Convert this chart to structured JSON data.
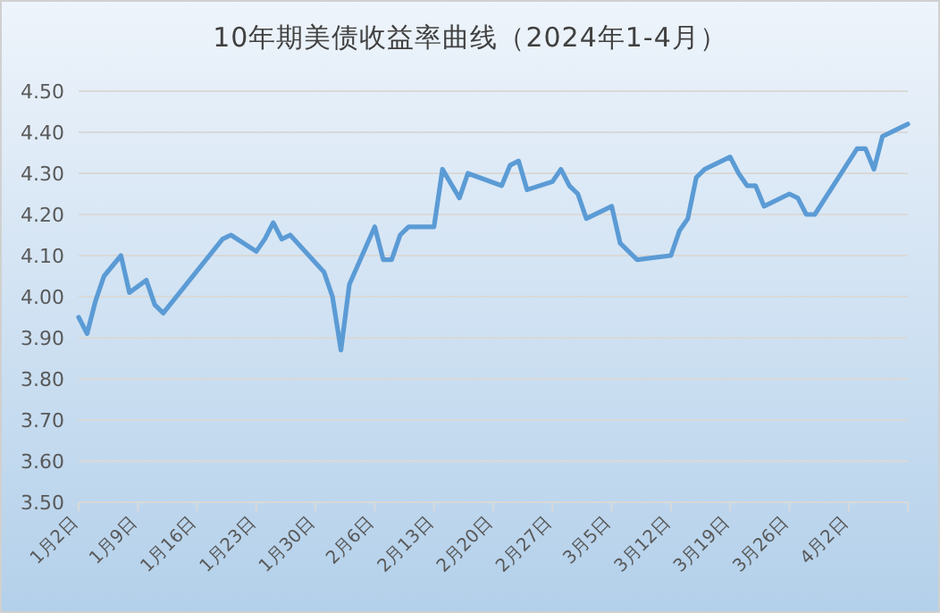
{
  "chart_data": {
    "type": "line",
    "title": "10年期美债收益率曲线（2024年1-4月）",
    "x": [
      "2024-01-02",
      "2024-01-03",
      "2024-01-04",
      "2024-01-05",
      "2024-01-07",
      "2024-01-08",
      "2024-01-10",
      "2024-01-11",
      "2024-01-12",
      "2024-01-19",
      "2024-01-20",
      "2024-01-23",
      "2024-01-24",
      "2024-01-25",
      "2024-01-26",
      "2024-01-27",
      "2024-01-31",
      "2024-02-01",
      "2024-02-02",
      "2024-02-03",
      "2024-02-06",
      "2024-02-07",
      "2024-02-08",
      "2024-02-09",
      "2024-02-10",
      "2024-02-13",
      "2024-02-14",
      "2024-02-16",
      "2024-02-17",
      "2024-02-21",
      "2024-02-22",
      "2024-02-23",
      "2024-02-24",
      "2024-02-27",
      "2024-02-28",
      "2024-02-29",
      "2024-03-01",
      "2024-03-02",
      "2024-03-05",
      "2024-03-06",
      "2024-03-08",
      "2024-03-12",
      "2024-03-13",
      "2024-03-14",
      "2024-03-15",
      "2024-03-16",
      "2024-03-19",
      "2024-03-20",
      "2024-03-21",
      "2024-03-22",
      "2024-03-23",
      "2024-03-26",
      "2024-03-27",
      "2024-03-28",
      "2024-03-29",
      "2024-04-03",
      "2024-04-04",
      "2024-04-05",
      "2024-04-06",
      "2024-04-09"
    ],
    "series": [
      {
        "color": "#5b9bd5",
        "values": [
          3.95,
          3.91,
          3.99,
          4.05,
          4.1,
          4.01,
          4.04,
          3.98,
          3.96,
          4.14,
          4.15,
          4.11,
          4.14,
          4.18,
          4.14,
          4.15,
          4.06,
          4.0,
          3.87,
          4.03,
          4.17,
          4.09,
          4.09,
          4.15,
          4.17,
          4.17,
          4.31,
          4.24,
          4.3,
          4.27,
          4.32,
          4.33,
          4.26,
          4.28,
          4.31,
          4.27,
          4.25,
          4.19,
          4.22,
          4.13,
          4.09,
          4.1,
          4.16,
          4.19,
          4.29,
          4.31,
          4.34,
          4.3,
          4.27,
          4.27,
          4.22,
          4.25,
          4.24,
          4.2,
          4.2,
          4.36,
          4.36,
          4.31,
          4.39,
          4.42
        ]
      }
    ],
    "xlim": [
      "2024-01-02",
      "2024-04-09"
    ],
    "xticks": [
      {
        "value": "2024-01-02",
        "label": "1月2日"
      },
      {
        "value": "2024-01-09",
        "label": "1月9日"
      },
      {
        "value": "2024-01-16",
        "label": "1月16日"
      },
      {
        "value": "2024-01-23",
        "label": "1月23日"
      },
      {
        "value": "2024-01-30",
        "label": "1月30日"
      },
      {
        "value": "2024-02-06",
        "label": "2月6日"
      },
      {
        "value": "2024-02-13",
        "label": "2月13日"
      },
      {
        "value": "2024-02-20",
        "label": "2月20日"
      },
      {
        "value": "2024-02-27",
        "label": "2月27日"
      },
      {
        "value": "2024-03-05",
        "label": "3月5日"
      },
      {
        "value": "2024-03-12",
        "label": "3月12日"
      },
      {
        "value": "2024-03-19",
        "label": "3月19日"
      },
      {
        "value": "2024-03-26",
        "label": "3月26日"
      },
      {
        "value": "2024-04-02",
        "label": "4月2日"
      },
      {
        "value": "2024-04-09",
        "label": null
      }
    ],
    "ylim": [
      3.5,
      4.5
    ],
    "yticks": [
      {
        "value": 3.5,
        "label": "3.50"
      },
      {
        "value": 3.6,
        "label": "3.60"
      },
      {
        "value": 3.7,
        "label": "3.70"
      },
      {
        "value": 3.8,
        "label": "3.80"
      },
      {
        "value": 3.9,
        "label": "3.90"
      },
      {
        "value": 4.0,
        "label": "4.00"
      },
      {
        "value": 4.1,
        "label": "4.10"
      },
      {
        "value": 4.2,
        "label": "4.20"
      },
      {
        "value": 4.3,
        "label": "4.30"
      },
      {
        "value": 4.4,
        "label": "4.40"
      },
      {
        "value": 4.5,
        "label": "4.50"
      }
    ],
    "grid": "y"
  }
}
